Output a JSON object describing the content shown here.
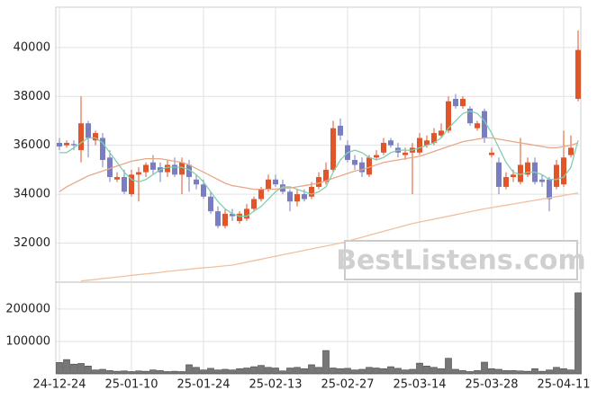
{
  "chart_data": [
    {
      "type": "candlestick",
      "open": [
        36100,
        36000,
        36050,
        35800,
        36900,
        36200,
        36300,
        35500,
        34600,
        34700,
        34000,
        34800,
        34900,
        35300,
        35100,
        34900,
        35200,
        34800,
        35200,
        34600,
        34400,
        33900,
        33300,
        32700,
        33200,
        32900,
        33000,
        33400,
        33800,
        34200,
        34600,
        34400,
        34100,
        33700,
        34000,
        33900,
        34300,
        34500,
        35000,
        36800,
        36000,
        35400,
        35300,
        34800,
        35500,
        35700,
        36200,
        35900,
        35600,
        35700,
        35700,
        36000,
        36100,
        36400,
        36600,
        37900,
        37600,
        37500,
        36700,
        37400,
        35600,
        35300,
        34300,
        34700,
        34500,
        34800,
        35300,
        34600,
        34600,
        34300,
        34400,
        35600,
        37900
      ],
      "high": [
        36300,
        36200,
        36200,
        38000,
        37000,
        36600,
        36500,
        35800,
        34900,
        35000,
        35000,
        35100,
        35300,
        35600,
        35300,
        35400,
        35500,
        35500,
        35400,
        34800,
        34600,
        34100,
        33500,
        33400,
        33400,
        33300,
        33600,
        33900,
        34300,
        34800,
        34800,
        34600,
        34200,
        34200,
        34200,
        34500,
        34900,
        35300,
        37000,
        37100,
        36200,
        35600,
        35500,
        35600,
        35800,
        36300,
        36300,
        36100,
        35900,
        36100,
        36500,
        36400,
        36700,
        36900,
        38000,
        38100,
        38000,
        37600,
        37000,
        37500,
        35900,
        35500,
        34900,
        35000,
        36300,
        35500,
        35500,
        34800,
        34700,
        35400,
        36600,
        36400,
        40700
      ],
      "low": [
        35800,
        35900,
        35800,
        35300,
        35500,
        36000,
        35100,
        34500,
        34500,
        34000,
        33900,
        33700,
        34700,
        34800,
        34500,
        34700,
        34700,
        34000,
        34100,
        34200,
        33800,
        33200,
        32600,
        32600,
        32900,
        32800,
        32900,
        33300,
        33700,
        34100,
        34300,
        34000,
        33300,
        33500,
        33700,
        33800,
        34200,
        34400,
        34900,
        36200,
        35300,
        35000,
        34700,
        34700,
        35400,
        35600,
        35900,
        35500,
        35400,
        34000,
        35600,
        35900,
        36000,
        36300,
        36500,
        37500,
        37500,
        36800,
        36600,
        36100,
        35500,
        34000,
        34200,
        34500,
        34400,
        34700,
        34400,
        34300,
        33300,
        34200,
        34300,
        35500,
        37800
      ],
      "close": [
        35950,
        36100,
        36000,
        36900,
        36300,
        36500,
        35400,
        34700,
        34700,
        34100,
        34800,
        34900,
        35200,
        35000,
        34900,
        35200,
        34800,
        35300,
        34700,
        34400,
        33900,
        33300,
        32700,
        33200,
        33100,
        33200,
        33400,
        33800,
        34200,
        34600,
        34400,
        34100,
        33700,
        34000,
        33800,
        34300,
        34700,
        35000,
        36700,
        36400,
        35400,
        35200,
        34900,
        35500,
        35600,
        36100,
        36000,
        35700,
        35700,
        35900,
        36300,
        36200,
        36500,
        36600,
        37800,
        37600,
        37900,
        36900,
        36900,
        36300,
        35700,
        34300,
        34700,
        34800,
        35200,
        35300,
        34500,
        34500,
        33800,
        35200,
        35500,
        35900,
        39900
      ],
      "up_color": "#e0552a",
      "down_color": "#7a7ec0",
      "series": [
        {
          "color": "#7fcfb0",
          "values": [
            35700,
            35700,
            35900,
            36100,
            36300,
            36300,
            36100,
            35700,
            35300,
            34900,
            34600,
            34500,
            34600,
            34800,
            35000,
            35100,
            35100,
            35100,
            35000,
            34800,
            34500,
            34100,
            33700,
            33400,
            33200,
            33100,
            33100,
            33300,
            33500,
            33800,
            34100,
            34300,
            34300,
            34200,
            34100,
            34000,
            34100,
            34300,
            34900,
            35400,
            35700,
            35800,
            35700,
            35500,
            35400,
            35500,
            35700,
            35800,
            35800,
            35800,
            35900,
            36000,
            36100,
            36300,
            36700,
            37000,
            37300,
            37400,
            37300,
            37000,
            36500,
            35900,
            35300,
            34900,
            34800,
            34900,
            34900,
            34800,
            34600,
            34600,
            34700,
            35100,
            36200
          ]
        },
        {
          "color": "#e8a888",
          "values": [
            34100,
            34300,
            34450,
            34600,
            34750,
            34850,
            34950,
            35050,
            35150,
            35250,
            35350,
            35400,
            35450,
            35450,
            35450,
            35400,
            35350,
            35300,
            35200,
            35050,
            34900,
            34750,
            34600,
            34450,
            34350,
            34300,
            34250,
            34200,
            34200,
            34200,
            34200,
            34250,
            34250,
            34300,
            34350,
            34400,
            34450,
            34550,
            34650,
            34750,
            34850,
            34950,
            35000,
            35100,
            35200,
            35300,
            35350,
            35400,
            35450,
            35500,
            35550,
            35650,
            35750,
            35850,
            35950,
            36050,
            36150,
            36200,
            36250,
            36300,
            36300,
            36250,
            36200,
            36150,
            36100,
            36050,
            36000,
            35950,
            35900,
            35900,
            35950,
            36000,
            36100
          ]
        },
        {
          "color": "#f0c0a0",
          "values": [
            null,
            null,
            null,
            30450,
            30480,
            30510,
            30550,
            30580,
            30610,
            30640,
            30680,
            30710,
            30740,
            30770,
            30800,
            30840,
            30870,
            30900,
            30930,
            30960,
            30990,
            31010,
            31040,
            31070,
            31100,
            31160,
            31220,
            31280,
            31340,
            31400,
            31460,
            31520,
            31580,
            31640,
            31700,
            31760,
            31820,
            31880,
            31940,
            32000,
            32080,
            32160,
            32240,
            32320,
            32400,
            32480,
            32560,
            32640,
            32720,
            32800,
            32860,
            32920,
            32980,
            33040,
            33100,
            33160,
            33220,
            33280,
            33340,
            33400,
            33450,
            33500,
            33550,
            33600,
            33650,
            33700,
            33750,
            33800,
            33850,
            33900,
            33950,
            34000,
            34050
          ]
        }
      ],
      "ylim": [
        30400,
        41650
      ],
      "yticks": [
        32000,
        34000,
        36000,
        38000,
        40000
      ],
      "grid": true,
      "watermark": "BestListens.com"
    },
    {
      "type": "bar",
      "categories": [
        "24-12-24",
        null,
        null,
        null,
        null,
        null,
        null,
        null,
        null,
        null,
        "25-01-10",
        null,
        null,
        null,
        null,
        null,
        null,
        null,
        null,
        null,
        "25-01-24",
        null,
        null,
        null,
        null,
        null,
        null,
        null,
        null,
        null,
        "25-02-13",
        null,
        null,
        null,
        null,
        null,
        null,
        null,
        null,
        null,
        "25-02-27",
        null,
        null,
        null,
        null,
        null,
        null,
        null,
        null,
        null,
        "25-03-14",
        null,
        null,
        null,
        null,
        null,
        null,
        null,
        null,
        null,
        "25-03-28",
        null,
        null,
        null,
        null,
        null,
        null,
        null,
        null,
        null,
        "25-04-11",
        null,
        null
      ],
      "values": [
        35000,
        44000,
        30000,
        32000,
        24000,
        12000,
        14000,
        10000,
        8000,
        9000,
        7000,
        9000,
        8000,
        12000,
        10000,
        7000,
        8000,
        7000,
        28000,
        20000,
        12000,
        17000,
        12000,
        14000,
        12000,
        16000,
        18000,
        22000,
        26000,
        20000,
        18000,
        9000,
        18000,
        20000,
        16000,
        28000,
        20000,
        72000,
        18000,
        16000,
        17000,
        12000,
        14000,
        20000,
        18000,
        16000,
        22000,
        17000,
        12000,
        14000,
        33000,
        24000,
        20000,
        16000,
        48000,
        14000,
        10000,
        7000,
        10000,
        36000,
        16000,
        14000,
        10000,
        10000,
        9000,
        8000,
        16000,
        8000,
        12000,
        20000,
        16000,
        12000,
        250000
      ],
      "color": "#777777",
      "ylim": [
        0,
        283000
      ],
      "yticks": [
        100000,
        200000
      ],
      "grid": true
    }
  ]
}
